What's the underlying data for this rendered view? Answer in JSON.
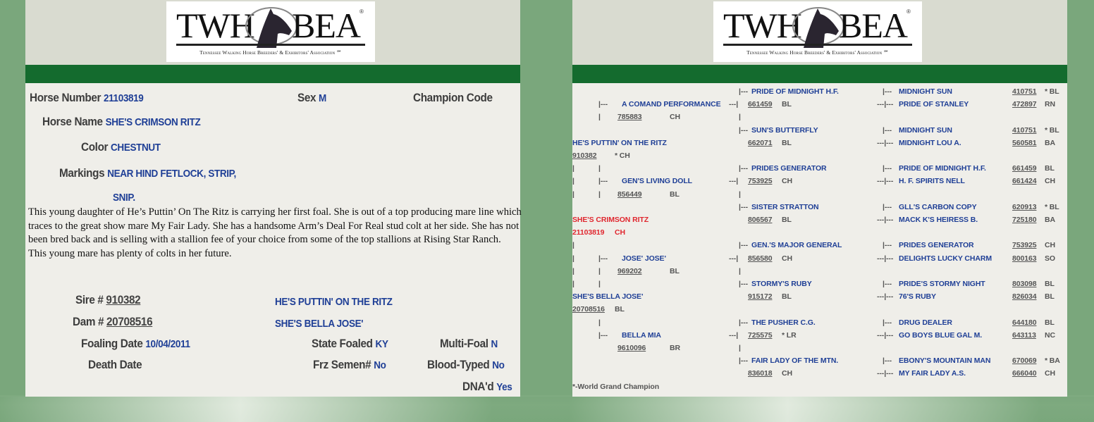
{
  "logo": {
    "left": "TWH",
    "right": "BEA",
    "registered": "®",
    "subtitle": "Tennessee Walking Horse Breeders' & Exhibitors' Association ℠"
  },
  "colors": {
    "band": "#146b2e",
    "value": "#1f3f96",
    "subject": "#e0262e",
    "background": "#7aa77c"
  },
  "details": {
    "horse_number_label": "Horse Number",
    "horse_number": "21103819",
    "sex_label": "Sex",
    "sex": "M",
    "champion_code_label": "Champion Code",
    "horse_name_label": "Horse Name",
    "horse_name": "SHE'S CRIMSON RITZ",
    "color_label": "Color",
    "color": "CHESTNUT",
    "markings_label": "Markings",
    "markings_1": "NEAR HIND FETLOCK, STRIP,",
    "markings_2": "SNIP.",
    "description": "This young daughter of He’s Puttin’ On The Ritz is carrying her first foal. She is out of a top producing mare line which traces to the great show mare My Fair Lady. She has a handsome Arm’s Deal For Real stud colt at her side. She has not been bred back and is selling with a stallion fee of your choice from some of the top stallions at Rising Star Ranch. This young mare has plenty of  colts in her future.",
    "sire_label": "Sire #",
    "sire_number": "910382",
    "sire_name": "HE'S PUTTIN' ON THE RITZ",
    "dam_label": "Dam #",
    "dam_number": "20708516",
    "dam_name": "SHE'S BELLA JOSE'",
    "foaling_date_label": "Foaling Date",
    "foaling_date": "10/04/2011",
    "state_foaled_label": "State Foaled",
    "state_foaled": "KY",
    "multi_foal_label": "Multi-Foal",
    "multi_foal": "N",
    "death_date_label": "Death Date",
    "frz_semen_label": "Frz Semen#",
    "frz_semen": "No",
    "blood_typed_label": "Blood-Typed",
    "blood_typed": "No",
    "dnad_label": "DNA'd",
    "dnad": "Yes"
  },
  "pedigree": {
    "subject": {
      "name": "SHE'S CRIMSON RITZ",
      "number": "21103819",
      "color": "CH"
    },
    "sire": {
      "name": "HE'S PUTTIN' ON THE RITZ",
      "number": "910382",
      "color": "* CH"
    },
    "dam": {
      "name": "SHE'S BELLA JOSE'",
      "number": "20708516",
      "color": "BL"
    },
    "gen2": [
      {
        "name": "A COMAND PERFORMANCE",
        "number": "785883",
        "color": "CH"
      },
      {
        "name": "GEN'S LIVING DOLL",
        "number": "856449",
        "color": "BL"
      },
      {
        "name": "JOSE' JOSE'",
        "number": "969202",
        "color": "BL"
      },
      {
        "name": "BELLA MIA",
        "number": "9610096",
        "color": "BR"
      }
    ],
    "gen3": [
      {
        "name": "PRIDE OF MIDNIGHT H.F.",
        "number": "661459",
        "color": "BL"
      },
      {
        "name": "SUN'S BUTTERFLY",
        "number": "662071",
        "color": "BL"
      },
      {
        "name": "PRIDES GENERATOR",
        "number": "753925",
        "color": "CH"
      },
      {
        "name": "SISTER STRATTON",
        "number": "806567",
        "color": "BL"
      },
      {
        "name": "GEN.'S MAJOR GENERAL",
        "number": "856580",
        "color": "CH"
      },
      {
        "name": "STORMY'S RUBY",
        "number": "915172",
        "color": "BL"
      },
      {
        "name": "THE PUSHER C.G.",
        "number": "725575",
        "color": "* LR"
      },
      {
        "name": "FAIR LADY OF THE MTN.",
        "number": "836018",
        "color": "CH"
      }
    ],
    "gen4": [
      {
        "name": "MIDNIGHT SUN",
        "number": "410751",
        "color": "* BL"
      },
      {
        "name": "PRIDE OF STANLEY",
        "number": "472897",
        "color": "RN"
      },
      {
        "name": "MIDNIGHT SUN",
        "number": "410751",
        "color": "* BL"
      },
      {
        "name": "MIDNIGHT LOU A.",
        "number": "560581",
        "color": "BA"
      },
      {
        "name": "PRIDE OF MIDNIGHT H.F.",
        "number": "661459",
        "color": "BL"
      },
      {
        "name": "H. F. SPIRITS NELL",
        "number": "661424",
        "color": "CH"
      },
      {
        "name": "GLL'S CARBON COPY",
        "number": "620913",
        "color": "* BL"
      },
      {
        "name": "MACK K'S HEIRESS B.",
        "number": "725180",
        "color": "BA"
      },
      {
        "name": "PRIDES GENERATOR",
        "number": "753925",
        "color": "CH"
      },
      {
        "name": "DELIGHTS LUCKY CHARM",
        "number": "800163",
        "color": "SO"
      },
      {
        "name": "PRIDE'S STORMY NIGHT",
        "number": "803098",
        "color": "BL"
      },
      {
        "name": "76'S RUBY",
        "number": "826034",
        "color": "BL"
      },
      {
        "name": "DRUG DEALER",
        "number": "644180",
        "color": "BL"
      },
      {
        "name": "GO BOYS BLUE GAL M.",
        "number": "643113",
        "color": "NC"
      },
      {
        "name": "EBONY'S MOUNTAIN MAN",
        "number": "670069",
        "color": "* BA"
      },
      {
        "name": "MY FAIR LADY A.S.",
        "number": "666040",
        "color": "CH"
      }
    ],
    "connectors": {
      "branch": "|---",
      "join": "---|",
      "joinbranch": "---|---",
      "pipe": "|"
    },
    "footnote": "*-World Grand Champion"
  }
}
